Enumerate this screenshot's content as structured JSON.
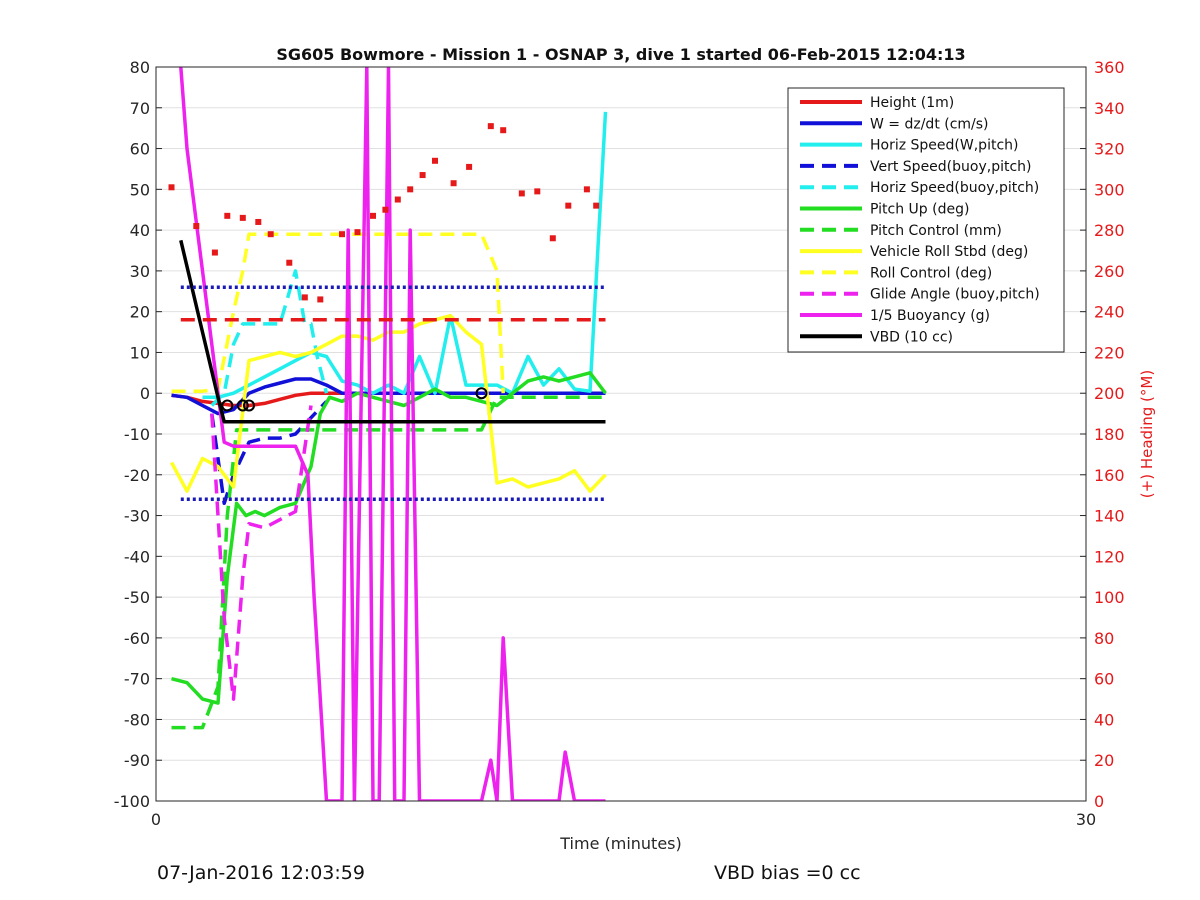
{
  "chart_data": {
    "type": "line",
    "title": "SG605 Bowmore - Mission 1 - OSNAP 3, dive 1 started 06-Feb-2015 12:04:13",
    "xlabel": "Time (minutes)",
    "ylabel": "",
    "y2label": "(+) Heading (°M)",
    "xlim": [
      0,
      30
    ],
    "ylim": [
      -100,
      80
    ],
    "y2lim": [
      0,
      360
    ],
    "x_ticks": [
      "0",
      "30"
    ],
    "y_ticks": [
      "80",
      "70",
      "60",
      "50",
      "40",
      "30",
      "20",
      "10",
      "0",
      "-10",
      "-20",
      "-30",
      "-40",
      "-50",
      "-60",
      "-70",
      "-80",
      "-90",
      "-100"
    ],
    "y2_ticks": [
      "360",
      "340",
      "320",
      "300",
      "280",
      "260",
      "240",
      "220",
      "200",
      "180",
      "160",
      "140",
      "120",
      "100",
      "80",
      "60",
      "40",
      "20",
      "0"
    ],
    "grid": "horizontal",
    "legend_position": "top-right",
    "colors": {
      "red": "#e6191a",
      "blue": "#1010d8",
      "cyan": "#22eeee",
      "green": "#22dd22",
      "yellow": "#ffff22",
      "magenta": "#ee22ee",
      "black": "#000000",
      "navy": "#1a1ab8",
      "right_axis": "#e6191a"
    },
    "legend": [
      {
        "label": "Height (1m)",
        "color": "#e6191a",
        "dash": "solid"
      },
      {
        "label": "W = dz/dt (cm/s)",
        "color": "#1010d8",
        "dash": "solid"
      },
      {
        "label": "Horiz Speed(W,pitch)",
        "color": "#22eeee",
        "dash": "solid"
      },
      {
        "label": "Vert Speed(buoy,pitch)",
        "color": "#1010d8",
        "dash": "dashed"
      },
      {
        "label": "Horiz Speed(buoy,pitch)",
        "color": "#22eeee",
        "dash": "dashed"
      },
      {
        "label": "Pitch Up (deg)",
        "color": "#22dd22",
        "dash": "solid"
      },
      {
        "label": "Pitch Control (mm)",
        "color": "#22dd22",
        "dash": "dashed"
      },
      {
        "label": "Vehicle Roll Stbd (deg)",
        "color": "#ffff22",
        "dash": "solid"
      },
      {
        "label": "Roll Control (deg)",
        "color": "#ffff22",
        "dash": "dashed"
      },
      {
        "label": "Glide Angle (buoy,pitch)",
        "color": "#ee22ee",
        "dash": "dashed"
      },
      {
        "label": "1/5 Buoyancy (g)",
        "color": "#ee22ee",
        "dash": "solid"
      },
      {
        "label": "VBD (10 cc)",
        "color": "#000000",
        "dash": "solid"
      }
    ],
    "series": [
      {
        "name": "Height (1m)",
        "color": "#e6191a",
        "dash": "solid",
        "x": [
          0.5,
          1.0,
          1.5,
          2.0,
          2.5,
          3.0,
          3.5,
          4.0,
          4.5,
          5.0,
          6.0,
          7.0,
          8.0,
          9.0,
          10.0,
          11.0,
          12.0,
          13.0,
          14.5
        ],
        "y": [
          -0.5,
          -1,
          -2,
          -2.5,
          -3,
          -3,
          -2.5,
          -1.5,
          -0.5,
          0,
          0,
          0,
          0,
          0,
          0,
          0,
          0,
          0,
          0
        ]
      },
      {
        "name": "W = dz/dt (cm/s)",
        "color": "#1010d8",
        "dash": "solid",
        "x": [
          0.5,
          1.0,
          1.5,
          2.0,
          2.5,
          3.0,
          3.5,
          4.0,
          4.5,
          5.0,
          5.5,
          6.0,
          7.0,
          8.0,
          9.0,
          10.0,
          11.0,
          12.0,
          13.0,
          14.5
        ],
        "y": [
          -0.5,
          -1,
          -3,
          -5,
          -4,
          0,
          1.5,
          2.5,
          3.5,
          3.5,
          2,
          0,
          0,
          0,
          0,
          0,
          0,
          0,
          0,
          0
        ]
      },
      {
        "name": "Horiz Speed(W,pitch)",
        "color": "#22eeee",
        "dash": "solid",
        "x": [
          1.5,
          2.0,
          2.5,
          3.0,
          3.5,
          4.0,
          4.5,
          5.0,
          5.5,
          6.0,
          6.5,
          7.0,
          7.5,
          8.0,
          8.5,
          9.0,
          9.5,
          10.0,
          10.5,
          11.0,
          11.5,
          12.0,
          12.5,
          13.0,
          13.5,
          14.0,
          14.5
        ],
        "y": [
          -1,
          -1,
          0,
          2,
          4,
          6,
          8,
          10,
          9,
          3,
          2,
          0,
          2,
          0,
          9,
          0,
          19,
          2,
          2,
          2,
          0,
          9,
          2,
          6,
          1,
          0.5,
          69
        ]
      },
      {
        "name": "Vert Speed(buoy,pitch)",
        "color": "#1010d8",
        "dash": "dashed",
        "x": [
          1.8,
          2.2,
          2.5,
          3.0,
          3.5,
          4.0,
          4.5,
          5.0,
          5.5
        ],
        "y": [
          -5,
          -27,
          -20,
          -12,
          -11,
          -11,
          -10,
          -6,
          -2
        ]
      },
      {
        "name": "Horiz Speed(buoy,pitch)",
        "color": "#22eeee",
        "dash": "dashed",
        "x": [
          1.8,
          2.2,
          2.5,
          2.8,
          3.0,
          3.5,
          4.0,
          4.5,
          4.8,
          5.0,
          5.2,
          5.5
        ],
        "y": [
          -3,
          0,
          12,
          17,
          17,
          17,
          17,
          30,
          17,
          17,
          9,
          0
        ]
      },
      {
        "name": "Pitch Up (deg)",
        "color": "#22dd22",
        "dash": "solid",
        "x": [
          0.5,
          1.0,
          1.5,
          2.0,
          2.3,
          2.6,
          2.9,
          3.2,
          3.5,
          4.0,
          4.5,
          5.0,
          5.3,
          5.6,
          6.0,
          6.5,
          7.0,
          7.5,
          8.0,
          8.5,
          9.0,
          9.5,
          10.0,
          10.5,
          11.0,
          11.5,
          12.0,
          12.5,
          13.0,
          13.5,
          14.0,
          14.5
        ],
        "y": [
          -70,
          -71,
          -75,
          -76,
          -45,
          -27,
          -30,
          -29,
          -30,
          -28,
          -27,
          -18,
          -5,
          -1,
          -2,
          0,
          -1,
          -2,
          -3,
          -1,
          1,
          -1,
          -1,
          -2,
          -3,
          0,
          3,
          4,
          3,
          4,
          5,
          0
        ]
      },
      {
        "name": "Pitch Control (mm)",
        "color": "#22dd22",
        "dash": "dashed",
        "x": [
          0.5,
          1.5,
          1.6,
          2.0,
          2.3,
          2.6,
          3.0,
          4.0,
          5.0,
          6.0,
          7.0,
          8.0,
          9.0,
          10.0,
          10.5,
          11.0,
          12.0,
          13.0,
          14.5
        ],
        "y": [
          -82,
          -82,
          -80,
          -72,
          -30,
          -9,
          -9,
          -9,
          -9,
          -9,
          -9,
          -9,
          -9,
          -9,
          -9,
          -1,
          -1,
          -1,
          -1
        ]
      },
      {
        "name": "Vehicle Roll Stbd (deg)",
        "color": "#ffff22",
        "dash": "solid",
        "x": [
          0.5,
          1.0,
          1.5,
          2.0,
          2.5,
          3.0,
          3.5,
          4.0,
          4.5,
          5.0,
          5.5,
          6.0,
          6.5,
          7.0,
          7.5,
          8.0,
          8.5,
          9.0,
          9.5,
          10.0,
          10.5,
          11.0,
          11.5,
          12.0,
          12.5,
          13.0,
          13.5,
          14.0,
          14.5
        ],
        "y": [
          -17,
          -24,
          -16,
          -18,
          -23,
          8,
          9,
          10,
          9,
          10,
          12,
          14,
          14,
          13,
          15,
          15,
          17,
          18,
          19,
          15,
          12,
          -22,
          -21,
          -23,
          -22,
          -21,
          -19,
          -24,
          -20
        ]
      },
      {
        "name": "Roll Control (deg)",
        "color": "#ffff22",
        "dash": "dashed",
        "x": [
          0.5,
          1.5,
          2.0,
          2.5,
          2.8,
          3.0,
          4.0,
          5.0,
          6.0,
          7.0,
          8.0,
          9.0,
          10.0,
          10.5,
          11.0,
          11.2
        ],
        "y": [
          0.5,
          0.5,
          1,
          20,
          30,
          39,
          39,
          39,
          39,
          39,
          39,
          39,
          39,
          39,
          30,
          0
        ]
      },
      {
        "name": "Glide Angle (buoy,pitch)",
        "color": "#ee22ee",
        "dash": "dashed",
        "x": [
          1.8,
          2.0,
          2.2,
          2.5,
          2.8,
          3.0,
          3.5,
          4.0,
          4.5,
          5.0
        ],
        "y": [
          -5,
          -30,
          -55,
          -75,
          -45,
          -32,
          -33,
          -31,
          -29,
          -3
        ]
      },
      {
        "name": "1/5 Buoyancy (g)",
        "color": "#ee22ee",
        "dash": "solid",
        "x": [
          0.8,
          1.0,
          1.5,
          2.0,
          2.2,
          2.5,
          3.0,
          3.5,
          4.0,
          4.5,
          4.9,
          5.1,
          5.5,
          6.0,
          6.2,
          6.4,
          6.8,
          7.0,
          7.2,
          7.5,
          7.7,
          8.0,
          8.2,
          8.5,
          8.7,
          9.0,
          9.2,
          9.5,
          10.0,
          10.5,
          10.8,
          11.0,
          11.2,
          11.5,
          11.7,
          12.0,
          12.3,
          12.5,
          13.0,
          13.2,
          13.5,
          13.7,
          14.0,
          14.3,
          14.5
        ],
        "y": [
          80,
          60,
          30,
          0,
          -12,
          -13,
          -13,
          -13,
          -13,
          -13,
          -20,
          -50,
          -100,
          -100,
          40,
          -100,
          80,
          -100,
          -100,
          80,
          -100,
          -100,
          40,
          -100,
          -100,
          -100,
          -100,
          -100,
          -100,
          -100,
          -90,
          -100,
          -60,
          -100,
          -100,
          -100,
          -100,
          -100,
          -100,
          -88,
          -100,
          -100,
          -100,
          -100,
          -100
        ]
      },
      {
        "name": "VBD (10 cc)",
        "color": "#000000",
        "dash": "solid",
        "x": [
          0.8,
          1.5,
          2.0,
          2.2,
          3.0,
          4.0,
          6.0,
          8.0,
          10.0,
          12.0,
          14.5
        ],
        "y": [
          37.5,
          15,
          -1,
          -7,
          -7,
          -7,
          -7,
          -7,
          -7,
          -7,
          -7
        ]
      },
      {
        "name": "",
        "color": "#1a1ab8",
        "dash": "dotted",
        "x": [
          0.8,
          14.5
        ],
        "y": [
          26,
          26
        ]
      },
      {
        "name": "",
        "color": "#1a1ab8",
        "dash": "dotted",
        "x": [
          0.8,
          14.5
        ],
        "y": [
          -26,
          -26
        ]
      },
      {
        "name": "",
        "color": "#e6191a",
        "dash": "dashed",
        "x": [
          0.8,
          14.5
        ],
        "y": [
          18,
          18
        ]
      }
    ],
    "heading_points": {
      "name": "(+) Heading (°M)",
      "color": "#e6191a",
      "x": [
        0.5,
        1.3,
        1.9,
        2.3,
        2.8,
        3.3,
        3.7,
        4.3,
        4.8,
        5.3,
        6.0,
        6.5,
        7.0,
        7.4,
        7.8,
        8.2,
        8.6,
        9.0,
        9.6,
        10.1,
        10.8,
        11.2,
        11.8,
        12.3,
        12.8,
        13.3,
        13.9,
        14.2
      ],
      "heading": [
        301,
        282,
        269,
        287,
        286,
        284,
        278,
        264,
        247,
        246,
        278,
        279,
        287,
        290,
        295,
        300,
        307,
        314,
        303,
        311,
        331,
        329,
        298,
        299,
        276,
        292,
        300,
        292
      ]
    },
    "markers": {
      "x": [
        2.3,
        2.8,
        3.0,
        10.5
      ],
      "y": [
        -3,
        -3,
        -3,
        0
      ]
    }
  },
  "footer": {
    "timestamp": "07-Jan-2016 12:03:59",
    "vbd_bias": "VBD bias =0 cc"
  }
}
